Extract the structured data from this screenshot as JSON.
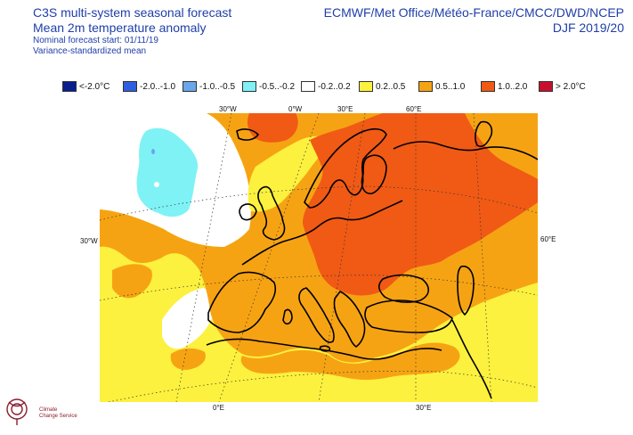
{
  "header": {
    "title_line1": "C3S multi-system seasonal forecast",
    "title_line2": "Mean 2m temperature anomaly",
    "forecast_start": "Nominal forecast start: 01/11/19",
    "subtitle": "Variance-standardized mean",
    "systems": "ECMWF/Met Office/Météo-France/CMCC/DWD/NCEP",
    "season": "DJF 2019/20"
  },
  "legend": [
    {
      "label": "<-2.0°C",
      "color": "#0a1f8f"
    },
    {
      "label": "-2.0..-1.0",
      "color": "#2f5fe0"
    },
    {
      "label": "-1.0..-0.5",
      "color": "#6aa6ea"
    },
    {
      "label": "-0.5..-0.2",
      "color": "#7ff2f5"
    },
    {
      "label": "-0.2..0.2",
      "color": "#ffffff"
    },
    {
      "label": "0.2..0.5",
      "color": "#fcf13e"
    },
    {
      "label": "0.5..1.0",
      "color": "#f6a313"
    },
    {
      "label": "1.0..2.0",
      "color": "#f05a15"
    },
    {
      "label": "> 2.0°C",
      "color": "#c8102e"
    }
  ],
  "graticule_labels": {
    "top": [
      "30°W",
      "0°W",
      "30°E",
      "60°E"
    ],
    "left": "30°W",
    "right": "60°E",
    "bottom": [
      "0°E",
      "30°E"
    ]
  },
  "logo": {
    "line1": "Climate",
    "line2": "Change Service"
  }
}
